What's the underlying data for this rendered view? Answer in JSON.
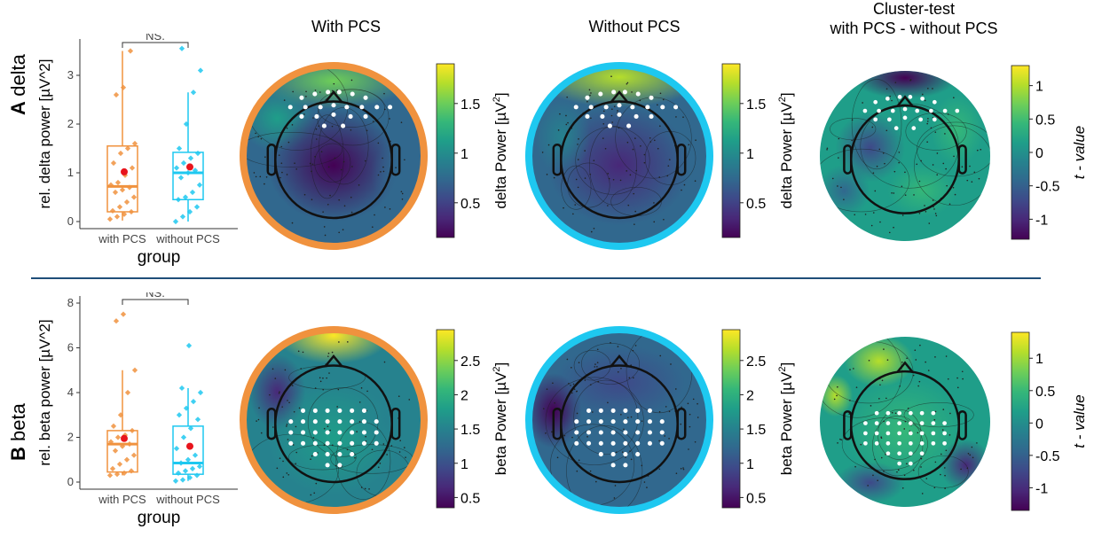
{
  "panels": {
    "col_titles": [
      "With PCS",
      "Without PCS"
    ],
    "cluster_title_line1": "Cluster-test",
    "cluster_title_line2": "with PCS - without PCS",
    "rows": [
      {
        "letter": "A",
        "name": "delta",
        "box_ylabel": "rel. delta power [µV^2]",
        "box_xlabel": "group",
        "box_categories": [
          "with PCS",
          "without PCS"
        ],
        "box_yticks": [
          "0",
          "1",
          "2",
          "3"
        ],
        "significance": "NS.",
        "power_label": "delta Power [µV",
        "power_ticks": [
          "1.5",
          "1",
          "0.5"
        ],
        "t_ticks": [
          "1",
          "0.5",
          "0",
          "-0.5",
          "-1"
        ],
        "t_label": "t - value"
      },
      {
        "letter": "B",
        "name": "beta",
        "box_ylabel": "rel. beta power [µV^2]",
        "box_xlabel": "group",
        "box_categories": [
          "with PCS",
          "without PCS"
        ],
        "box_yticks": [
          "0",
          "2",
          "4",
          "6",
          "8"
        ],
        "significance": "NS.",
        "power_label": "beta Power [µV",
        "power_ticks": [
          "2.5",
          "2",
          "1.5",
          "1",
          "0.5"
        ],
        "t_ticks": [
          "1",
          "0.5",
          "0",
          "-0.5",
          "-1"
        ],
        "t_label": "t - value"
      }
    ],
    "power_unit_sup": "2",
    "power_unit_close": "]"
  },
  "colors": {
    "with_pcs": "#f0923e",
    "without_pcs": "#1ec8f0",
    "mean_dot": "#e8141c",
    "divider": "#1f4e79"
  },
  "chart_data": [
    {
      "type": "box",
      "title": "",
      "xlabel": "group",
      "ylabel": "rel. delta power [µV^2]",
      "ylim": [
        0,
        3.6
      ],
      "significance": "NS.",
      "groups": [
        {
          "name": "with PCS",
          "q1": 0.2,
          "median": 0.72,
          "q3": 1.55,
          "whisker_low": 0.02,
          "whisker_high": 3.5,
          "mean": 1.02,
          "points": [
            0.05,
            0.1,
            0.15,
            0.2,
            0.22,
            0.3,
            0.4,
            0.5,
            0.6,
            0.65,
            0.7,
            0.75,
            0.8,
            0.95,
            1.1,
            1.2,
            1.4,
            1.5,
            1.6,
            2.6,
            2.75,
            3.5
          ]
        },
        {
          "name": "without PCS",
          "q1": 0.45,
          "median": 1.0,
          "q3": 1.42,
          "whisker_low": 0.0,
          "whisker_high": 2.65,
          "mean": 1.12,
          "points": [
            0.0,
            0.1,
            0.2,
            0.3,
            0.45,
            0.5,
            0.6,
            0.75,
            0.9,
            1.0,
            1.05,
            1.1,
            1.2,
            1.3,
            1.4,
            1.5,
            2.0,
            2.65,
            3.1,
            3.55
          ]
        }
      ]
    },
    {
      "type": "box",
      "title": "",
      "xlabel": "group",
      "ylabel": "rel. beta power [µV^2]",
      "ylim": [
        0,
        8
      ],
      "significance": "NS.",
      "groups": [
        {
          "name": "with PCS",
          "q1": 0.45,
          "median": 1.7,
          "q3": 2.3,
          "whisker_low": 0.3,
          "whisker_high": 5.0,
          "mean": 1.95,
          "points": [
            0.3,
            0.35,
            0.4,
            0.5,
            0.6,
            0.8,
            1.0,
            1.2,
            1.4,
            1.6,
            1.7,
            1.8,
            2.0,
            2.1,
            2.3,
            2.5,
            3.0,
            4.0,
            5.0,
            7.2,
            7.5
          ]
        },
        {
          "name": "without PCS",
          "q1": 0.35,
          "median": 0.85,
          "q3": 2.5,
          "whisker_low": 0.05,
          "whisker_high": 4.2,
          "mean": 1.6,
          "points": [
            0.05,
            0.1,
            0.2,
            0.3,
            0.4,
            0.5,
            0.6,
            0.7,
            0.85,
            1.0,
            1.2,
            1.5,
            2.0,
            2.4,
            2.8,
            3.0,
            3.3,
            3.6,
            4.0,
            4.2,
            6.1
          ]
        }
      ]
    }
  ]
}
